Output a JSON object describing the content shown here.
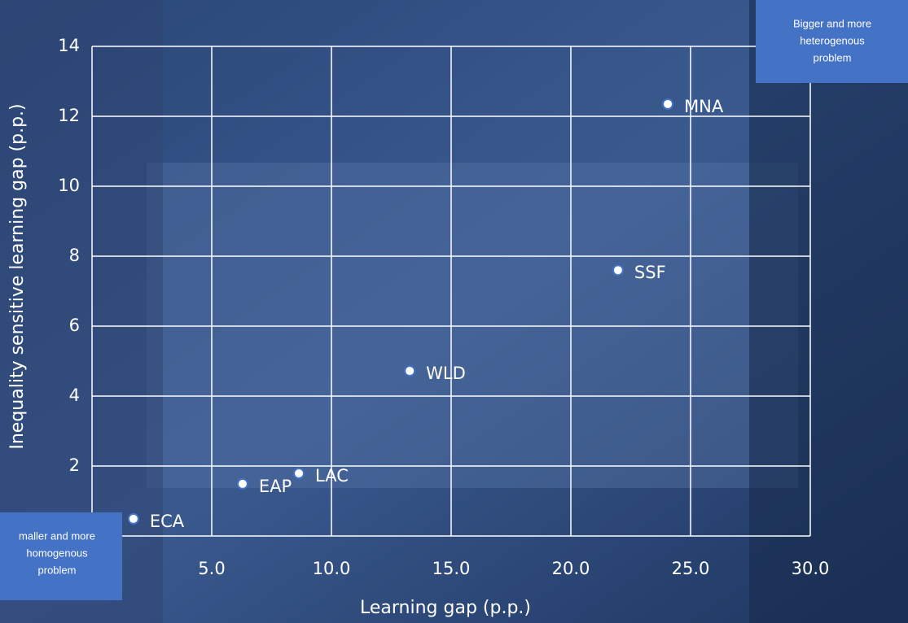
{
  "chart_data": {
    "type": "scatter",
    "x_label": "Learning gap (p.p.)",
    "y_label": "Inequality sensitive learning gap (p.p.)",
    "point_labels": [
      "MNA",
      "SSF",
      "WLD",
      "LAC",
      "EAP",
      "ECA"
    ],
    "x": [
      24.05,
      21.97,
      13.27,
      8.64,
      6.29,
      1.73
    ],
    "values": [
      12.35,
      7.6,
      4.72,
      1.79,
      1.49,
      0.49
    ],
    "color": "#ffffff",
    "stroke": "#4472c4",
    "xlim": [
      0,
      30
    ],
    "xticks": [
      {
        "value": 5,
        "label": "5.0"
      },
      {
        "value": 10,
        "label": "10.0"
      },
      {
        "value": 15,
        "label": "15.0"
      },
      {
        "value": 20,
        "label": "20.0"
      },
      {
        "value": 25,
        "label": "25.0"
      },
      {
        "value": 30,
        "label": "30.0"
      }
    ],
    "ylim": [
      0,
      14
    ],
    "yticks": [
      2,
      4,
      6,
      8,
      10,
      12,
      14
    ],
    "grid": true,
    "annotations": [
      {
        "lines": [
          "Bigger and more",
          "heterogenous",
          "problem"
        ]
      },
      {
        "lines": [
          "maller and more",
          "homogenous",
          "problem"
        ]
      }
    ]
  }
}
